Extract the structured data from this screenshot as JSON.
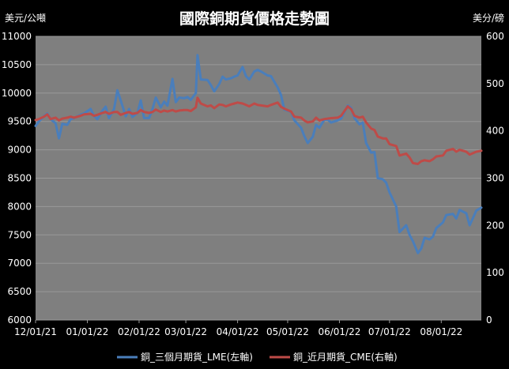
{
  "chart_data": {
    "type": "line",
    "title": "國際銅期貨價格走勢圖",
    "y_left_unit": "美元/公噸",
    "y_right_unit": "美分/磅",
    "y_left_lim": [
      6000,
      11000
    ],
    "y_left_ticks": [
      "6000",
      "6500",
      "7000",
      "7500",
      "8000",
      "8500",
      "9000",
      "9500",
      "10000",
      "10500",
      "11000"
    ],
    "y_right_lim": [
      0,
      600
    ],
    "y_right_ticks": [
      "0",
      "100",
      "200",
      "300",
      "400",
      "500",
      "600"
    ],
    "x_range": [
      "2021-12-01",
      "2022-08-25"
    ],
    "x_ticks": [
      {
        "date": "2021-12-01",
        "label": "12/01/21"
      },
      {
        "date": "2022-01-01",
        "label": "01/01/22"
      },
      {
        "date": "2022-02-01",
        "label": "02/01/22"
      },
      {
        "date": "2022-03-01",
        "label": "03/01/22"
      },
      {
        "date": "2022-04-01",
        "label": "04/01/22"
      },
      {
        "date": "2022-05-01",
        "label": "05/01/22"
      },
      {
        "date": "2022-06-01",
        "label": "06/01/22"
      },
      {
        "date": "2022-07-01",
        "label": "07/01/22"
      },
      {
        "date": "2022-08-01",
        "label": "08/01/22"
      }
    ],
    "grid": "horizontal",
    "legend_position": "bottom",
    "series": [
      {
        "name": "銅_三個月期貨_LME(左軸)",
        "axis": "left",
        "color": "#4a7ebb",
        "x": [
          "2021-12-01",
          "2021-12-03",
          "2021-12-06",
          "2021-12-08",
          "2021-12-10",
          "2021-12-13",
          "2021-12-15",
          "2021-12-17",
          "2021-12-20",
          "2021-12-22",
          "2021-12-24",
          "2021-12-28",
          "2021-12-30",
          "2022-01-03",
          "2022-01-05",
          "2022-01-07",
          "2022-01-10",
          "2022-01-12",
          "2022-01-14",
          "2022-01-17",
          "2022-01-19",
          "2022-01-21",
          "2022-01-24",
          "2022-01-26",
          "2022-01-28",
          "2022-01-31",
          "2022-02-02",
          "2022-02-04",
          "2022-02-07",
          "2022-02-09",
          "2022-02-11",
          "2022-02-14",
          "2022-02-16",
          "2022-02-18",
          "2022-02-21",
          "2022-02-23",
          "2022-02-25",
          "2022-02-28",
          "2022-03-02",
          "2022-03-04",
          "2022-03-07",
          "2022-03-08",
          "2022-03-10",
          "2022-03-14",
          "2022-03-16",
          "2022-03-18",
          "2022-03-21",
          "2022-03-23",
          "2022-03-25",
          "2022-03-28",
          "2022-03-30",
          "2022-04-01",
          "2022-04-04",
          "2022-04-06",
          "2022-04-08",
          "2022-04-11",
          "2022-04-13",
          "2022-04-15",
          "2022-04-19",
          "2022-04-21",
          "2022-04-25",
          "2022-04-27",
          "2022-04-29",
          "2022-05-03",
          "2022-05-05",
          "2022-05-09",
          "2022-05-11",
          "2022-05-13",
          "2022-05-16",
          "2022-05-18",
          "2022-05-20",
          "2022-05-23",
          "2022-05-25",
          "2022-05-27",
          "2022-05-31",
          "2022-06-02",
          "2022-06-06",
          "2022-06-08",
          "2022-06-10",
          "2022-06-13",
          "2022-06-15",
          "2022-06-17",
          "2022-06-20",
          "2022-06-22",
          "2022-06-24",
          "2022-06-27",
          "2022-06-29",
          "2022-07-01",
          "2022-07-05",
          "2022-07-07",
          "2022-07-11",
          "2022-07-13",
          "2022-07-15",
          "2022-07-18",
          "2022-07-20",
          "2022-07-22",
          "2022-07-25",
          "2022-07-27",
          "2022-07-29",
          "2022-08-02",
          "2022-08-04",
          "2022-08-08",
          "2022-08-10",
          "2022-08-12",
          "2022-08-16",
          "2022-08-18",
          "2022-08-22",
          "2022-08-25"
        ],
        "y": [
          9420,
          9500,
          9590,
          9640,
          9540,
          9470,
          9200,
          9460,
          9440,
          9540,
          9560,
          9620,
          9640,
          9720,
          9600,
          9540,
          9690,
          9760,
          9560,
          9720,
          10050,
          9870,
          9590,
          9720,
          9580,
          9650,
          9870,
          9560,
          9560,
          9720,
          9920,
          9750,
          9850,
          9780,
          10250,
          9840,
          9920,
          9910,
          9930,
          9880,
          10000,
          10670,
          10240,
          10230,
          10140,
          10030,
          10160,
          10290,
          10240,
          10260,
          10290,
          10310,
          10460,
          10300,
          10240,
          10380,
          10410,
          10380,
          10310,
          10300,
          10100,
          9970,
          9710,
          9670,
          9520,
          9390,
          9240,
          9120,
          9230,
          9440,
          9390,
          9530,
          9530,
          9480,
          9520,
          9550,
          9780,
          9740,
          9560,
          9450,
          9480,
          9120,
          8950,
          8960,
          8500,
          8480,
          8420,
          8250,
          8000,
          7550,
          7670,
          7500,
          7390,
          7180,
          7260,
          7450,
          7420,
          7470,
          7620,
          7720,
          7850,
          7870,
          7790,
          7940,
          7880,
          7670,
          7930,
          7980
        ]
      },
      {
        "name": "銅_近月期貨_CME(右軸)",
        "axis": "right",
        "color": "#be4b48",
        "x": [
          "2021-12-01",
          "2021-12-03",
          "2021-12-06",
          "2021-12-08",
          "2021-12-10",
          "2021-12-13",
          "2021-12-15",
          "2021-12-17",
          "2021-12-20",
          "2021-12-22",
          "2021-12-24",
          "2021-12-28",
          "2021-12-30",
          "2022-01-03",
          "2022-01-05",
          "2022-01-07",
          "2022-01-10",
          "2022-01-12",
          "2022-01-14",
          "2022-01-17",
          "2022-01-19",
          "2022-01-21",
          "2022-01-24",
          "2022-01-26",
          "2022-01-28",
          "2022-01-31",
          "2022-02-02",
          "2022-02-04",
          "2022-02-07",
          "2022-02-09",
          "2022-02-11",
          "2022-02-14",
          "2022-02-16",
          "2022-02-18",
          "2022-02-21",
          "2022-02-23",
          "2022-02-25",
          "2022-02-28",
          "2022-03-02",
          "2022-03-04",
          "2022-03-07",
          "2022-03-08",
          "2022-03-10",
          "2022-03-14",
          "2022-03-16",
          "2022-03-18",
          "2022-03-21",
          "2022-03-23",
          "2022-03-25",
          "2022-03-28",
          "2022-03-30",
          "2022-04-01",
          "2022-04-04",
          "2022-04-06",
          "2022-04-08",
          "2022-04-11",
          "2022-04-13",
          "2022-04-15",
          "2022-04-19",
          "2022-04-21",
          "2022-04-25",
          "2022-04-27",
          "2022-04-29",
          "2022-05-03",
          "2022-05-05",
          "2022-05-09",
          "2022-05-11",
          "2022-05-13",
          "2022-05-16",
          "2022-05-18",
          "2022-05-20",
          "2022-05-23",
          "2022-05-25",
          "2022-05-27",
          "2022-05-31",
          "2022-06-02",
          "2022-06-06",
          "2022-06-08",
          "2022-06-10",
          "2022-06-13",
          "2022-06-15",
          "2022-06-17",
          "2022-06-20",
          "2022-06-22",
          "2022-06-24",
          "2022-06-27",
          "2022-06-29",
          "2022-07-01",
          "2022-07-05",
          "2022-07-07",
          "2022-07-11",
          "2022-07-13",
          "2022-07-15",
          "2022-07-18",
          "2022-07-20",
          "2022-07-22",
          "2022-07-25",
          "2022-07-27",
          "2022-07-29",
          "2022-08-02",
          "2022-08-04",
          "2022-08-08",
          "2022-08-10",
          "2022-08-12",
          "2022-08-16",
          "2022-08-18",
          "2022-08-22",
          "2022-08-25"
        ],
        "y": [
          423,
          425,
          430,
          435,
          425,
          428,
          422,
          426,
          428,
          430,
          428,
          432,
          435,
          436,
          432,
          434,
          438,
          440,
          436,
          440,
          440,
          434,
          438,
          440,
          436,
          438,
          444,
          440,
          438,
          440,
          445,
          440,
          443,
          441,
          444,
          441,
          443,
          444,
          444,
          442,
          450,
          470,
          458,
          452,
          454,
          448,
          456,
          455,
          452,
          456,
          458,
          460,
          458,
          455,
          452,
          458,
          455,
          454,
          452,
          455,
          460,
          451,
          447,
          441,
          430,
          428,
          422,
          418,
          420,
          428,
          422,
          425,
          426,
          427,
          428,
          432,
          452,
          446,
          432,
          428,
          430,
          418,
          405,
          402,
          388,
          384,
          384,
          372,
          368,
          348,
          352,
          344,
          332,
          330,
          336,
          338,
          336,
          340,
          346,
          348,
          358,
          362,
          356,
          360,
          356,
          350,
          356,
          358
        ]
      }
    ]
  }
}
